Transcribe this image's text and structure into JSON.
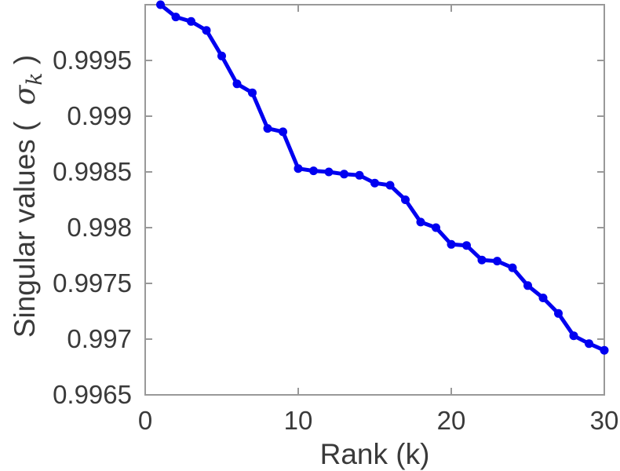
{
  "colors": {
    "line": "#0000f0",
    "axis": "#999999",
    "text": "#3a3a3a",
    "background": "#ffffff"
  },
  "chart_data": {
    "type": "line",
    "title": "",
    "xlabel": "Rank (k)",
    "ylabel": {
      "plain": "Singular values (  σ_k )",
      "prefix": "Singular values (  ",
      "symbol": "σ",
      "subscript": "k",
      "suffix": " )"
    },
    "x": [
      1,
      2,
      3,
      4,
      5,
      6,
      7,
      8,
      9,
      10,
      11,
      12,
      13,
      14,
      15,
      16,
      17,
      18,
      19,
      20,
      21,
      22,
      23,
      24,
      25,
      26,
      27,
      28,
      29,
      30
    ],
    "y": [
      1.0,
      0.99989,
      0.99985,
      0.99977,
      0.99954,
      0.99929,
      0.99921,
      0.99889,
      0.99886,
      0.99853,
      0.99851,
      0.9985,
      0.99848,
      0.99847,
      0.9984,
      0.99838,
      0.99825,
      0.99805,
      0.998,
      0.99785,
      0.99784,
      0.99771,
      0.9977,
      0.99764,
      0.99748,
      0.99737,
      0.99723,
      0.99703,
      0.99696,
      0.9969
    ],
    "xlim": [
      0,
      30
    ],
    "ylim": [
      0.9965,
      1.0
    ],
    "xticks": [
      0,
      10,
      20,
      30
    ],
    "xtick_labels": [
      "0",
      "10",
      "20",
      "30"
    ],
    "yticks": [
      0.9965,
      0.997,
      0.9975,
      0.998,
      0.9985,
      0.999,
      0.9995
    ],
    "ytick_labels": [
      "0.9965",
      "0.997",
      "0.9975",
      "0.998",
      "0.9985",
      "0.999",
      "0.9995"
    ],
    "grid": false,
    "legend": null,
    "box": true,
    "marker": "filled-circle",
    "line_width": 5,
    "marker_size": 11,
    "series_color": "#0000f0"
  }
}
